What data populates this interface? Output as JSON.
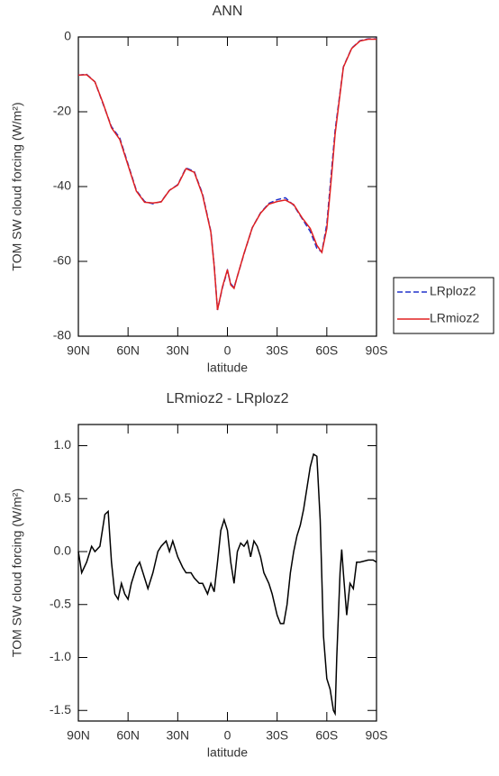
{
  "chart_data": [
    {
      "type": "line",
      "title": "ANN",
      "xlabel": "latitude",
      "ylabel": "TOM SW cloud forcing (W/m²)",
      "x": [
        90,
        85,
        80,
        75,
        70,
        65,
        60,
        55,
        50,
        45,
        40,
        35,
        30,
        25,
        20,
        15,
        10,
        8,
        6,
        3,
        0,
        -2,
        -4,
        -6,
        -10,
        -15,
        -20,
        -25,
        -30,
        -35,
        -40,
        -45,
        -50,
        -54,
        -57,
        -60,
        -63,
        -65,
        -70,
        -75,
        -80,
        -85,
        -90
      ],
      "series": [
        {
          "name": "LRploz2",
          "color": "#2233cc",
          "line_style": "dashed",
          "values": [
            -10.2,
            -10,
            -12,
            -18,
            -24,
            -27,
            -34,
            -41,
            -44,
            -44.6,
            -44,
            -41,
            -39.5,
            -35,
            -36,
            -42,
            -52,
            -61,
            -73,
            -67,
            -62.5,
            -66,
            -67,
            -64,
            -58,
            -51,
            -47,
            -44.5,
            -43.5,
            -43,
            -45,
            -48.5,
            -52,
            -56.5,
            -57.5,
            -50,
            -35,
            -25,
            -8,
            -3,
            -1,
            -0.5,
            -0.5
          ]
        },
        {
          "name": "LRmioz2",
          "color": "#e02020",
          "line_style": "solid",
          "values": [
            -10.2,
            -10.1,
            -12,
            -17.8,
            -24.3,
            -27.4,
            -34.3,
            -41.2,
            -44.2,
            -44.4,
            -44.1,
            -41,
            -39.6,
            -35.2,
            -36.2,
            -42.3,
            -52.2,
            -61.3,
            -73,
            -66.8,
            -62.2,
            -66.3,
            -67.2,
            -64,
            -57.9,
            -51,
            -47.1,
            -44.7,
            -44,
            -43.6,
            -44.8,
            -48.3,
            -51.2,
            -55.7,
            -57.6,
            -51.2,
            -36.5,
            -26,
            -8.1,
            -3.1,
            -1.1,
            -0.6,
            -0.6
          ]
        }
      ],
      "legend": "right",
      "xlim": [
        90,
        -90
      ],
      "xticks": [
        {
          "value": 90,
          "label": "90N"
        },
        {
          "value": 60,
          "label": "60N"
        },
        {
          "value": 30,
          "label": "30N"
        },
        0,
        {
          "value": -30,
          "label": "30S"
        },
        {
          "value": -60,
          "label": "60S"
        },
        {
          "value": -90,
          "label": "90S"
        }
      ],
      "ylim": [
        -80,
        0
      ],
      "yticks": [
        -80,
        -60,
        -40,
        -20,
        0
      ]
    },
    {
      "type": "line",
      "title": "LRmioz2 - LRploz2",
      "xlabel": "latitude",
      "ylabel": "TOM SW cloud forcing (W/m²)",
      "x": [
        90,
        88,
        85,
        82,
        80,
        77,
        74,
        72,
        70,
        68,
        66,
        64,
        62,
        60,
        58,
        55,
        53,
        50,
        48,
        45,
        42,
        40,
        37,
        35,
        33,
        30,
        27,
        25,
        22,
        20,
        17,
        15,
        12,
        10,
        8,
        6,
        4,
        2,
        0,
        -2,
        -4,
        -6,
        -8,
        -10,
        -12,
        -14,
        -16,
        -18,
        -20,
        -22,
        -25,
        -27,
        -30,
        -32,
        -34,
        -36,
        -38,
        -40,
        -42,
        -44,
        -46,
        -48,
        -50,
        -52,
        -54,
        -56,
        -58,
        -60,
        -62,
        -64,
        -65,
        -66,
        -68,
        -69,
        -70,
        -72,
        -74,
        -76,
        -78,
        -80,
        -85,
        -88,
        -90
      ],
      "series": [
        {
          "color": "#000000",
          "line_style": "solid",
          "values": [
            0.0,
            -0.2,
            -0.1,
            0.05,
            0.0,
            0.05,
            0.35,
            0.38,
            -0.1,
            -0.4,
            -0.45,
            -0.3,
            -0.4,
            -0.45,
            -0.3,
            -0.15,
            -0.1,
            -0.25,
            -0.35,
            -0.2,
            0.0,
            0.05,
            0.1,
            0.0,
            0.1,
            -0.05,
            -0.15,
            -0.2,
            -0.2,
            -0.25,
            -0.3,
            -0.3,
            -0.4,
            -0.3,
            -0.38,
            -0.1,
            0.2,
            0.3,
            0.2,
            -0.1,
            -0.3,
            0.0,
            0.08,
            0.05,
            0.1,
            -0.05,
            0.1,
            0.05,
            -0.05,
            -0.2,
            -0.3,
            -0.4,
            -0.6,
            -0.68,
            -0.68,
            -0.5,
            -0.2,
            0.0,
            0.15,
            0.25,
            0.4,
            0.6,
            0.8,
            0.92,
            0.9,
            0.3,
            -0.8,
            -1.2,
            -1.3,
            -1.5,
            -1.53,
            -1.0,
            -0.2,
            0.02,
            -0.2,
            -0.6,
            -0.3,
            -0.35,
            -0.1,
            -0.1,
            -0.08,
            -0.08,
            -0.1
          ]
        }
      ],
      "xlim": [
        90,
        -90
      ],
      "xticks": [
        {
          "value": 90,
          "label": "90N"
        },
        {
          "value": 60,
          "label": "60N"
        },
        {
          "value": 30,
          "label": "30N"
        },
        0,
        {
          "value": -30,
          "label": "30S"
        },
        {
          "value": -60,
          "label": "60S"
        },
        {
          "value": -90,
          "label": "90S"
        }
      ],
      "ylim": [
        -1.6,
        1.2
      ],
      "yticks": [
        {
          "value": -1.5,
          "label": "-1.5"
        },
        {
          "value": -1,
          "label": "-1.0"
        },
        {
          "value": -0.5,
          "label": "-0.5"
        },
        {
          "value": 0,
          "label": "0.0"
        },
        {
          "value": 0.5,
          "label": "0.5"
        },
        {
          "value": 1,
          "label": "1.0"
        }
      ]
    }
  ]
}
